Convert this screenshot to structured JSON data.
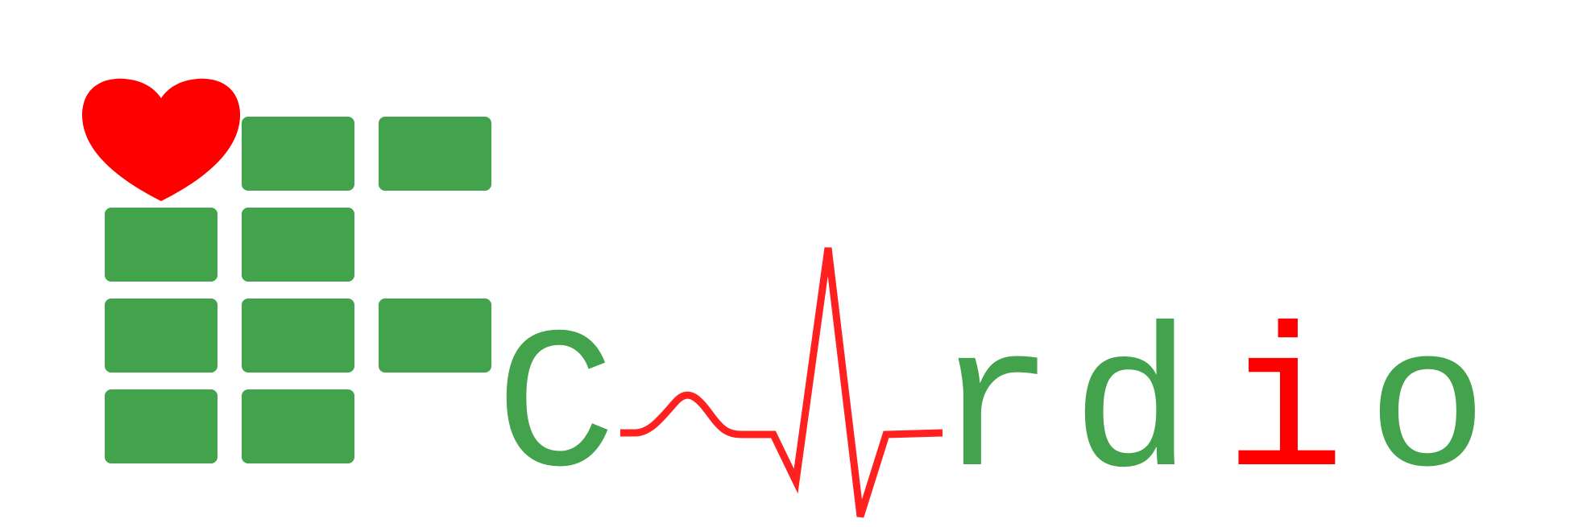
{
  "logo": {
    "wordmark": "C rdio",
    "letters": [
      {
        "char": "C",
        "color": "#43a24c"
      },
      {
        "char": "r",
        "color": "#43a24c"
      },
      {
        "char": "d",
        "color": "#43a24c"
      },
      {
        "char": "i",
        "color": "#ff0000"
      },
      {
        "char": "o",
        "color": "#43a24c"
      }
    ],
    "colors": {
      "primary_green": "#43a24c",
      "heart_red": "#ff0000",
      "pulse_red": "#ff2020",
      "background": "#ffffff"
    },
    "icons": {
      "heart": "heart-icon",
      "pulse": "heartbeat-pulse-icon",
      "blocks": "if-grid-blocks-icon"
    },
    "grid": {
      "rows": 4,
      "columns": 3
    }
  }
}
